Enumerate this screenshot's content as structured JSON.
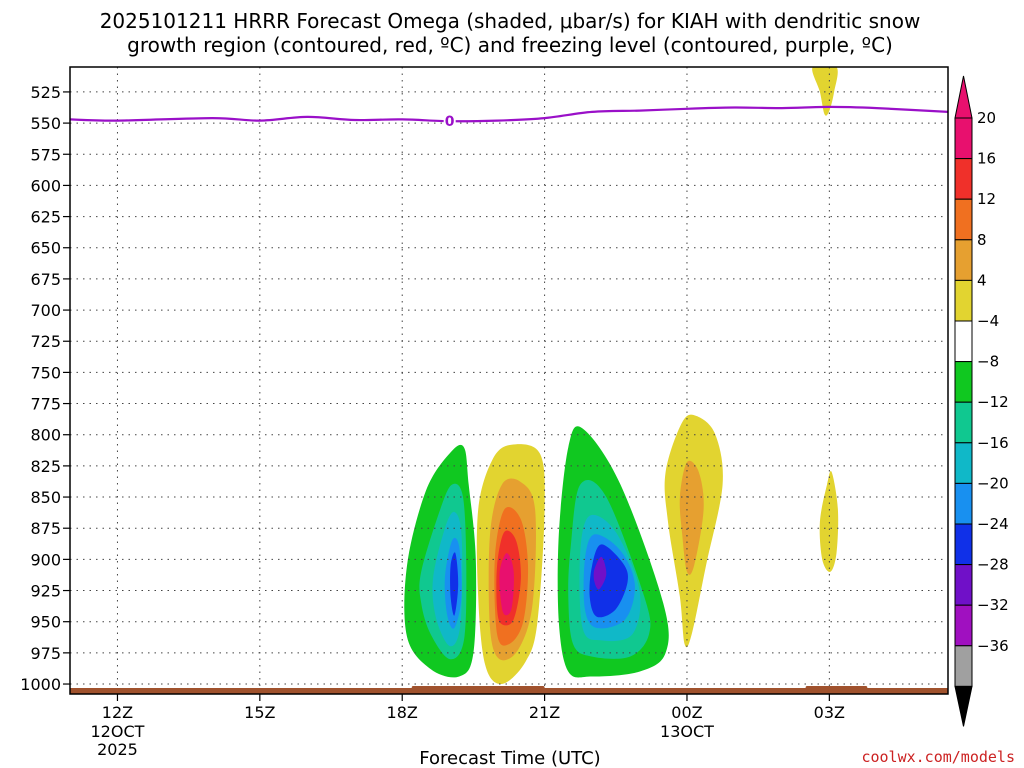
{
  "chart_data": {
    "type": "contour",
    "title_line1": "2025101211 HRRR Forecast Omega (shaded, μbar/s) for KIAH with dendritic snow",
    "title_line2": "growth region (contoured, red, ºC) and freezing level (contoured, purple, ºC)",
    "xlabel": "Forecast Time (UTC)",
    "credit": "coolwx.com/models",
    "credit_color": "#cc2222",
    "x_range_hours": [
      -1,
      17.5
    ],
    "y_range_hpa": [
      505,
      1008
    ],
    "y_ticks": [
      525,
      550,
      575,
      600,
      625,
      650,
      675,
      700,
      725,
      750,
      775,
      800,
      825,
      850,
      875,
      900,
      925,
      950,
      975,
      1000
    ],
    "x_ticks": [
      {
        "hour": 0,
        "label": "12Z",
        "date": "12OCT",
        "year": "2025"
      },
      {
        "hour": 3,
        "label": "15Z",
        "date": "",
        "year": ""
      },
      {
        "hour": 6,
        "label": "18Z",
        "date": "",
        "year": ""
      },
      {
        "hour": 9,
        "label": "21Z",
        "date": "",
        "year": ""
      },
      {
        "hour": 12,
        "label": "00Z",
        "date": "13OCT",
        "year": ""
      },
      {
        "hour": 15,
        "label": "03Z",
        "date": "",
        "year": ""
      }
    ],
    "colorbar": {
      "labels": [
        "20",
        "16",
        "12",
        "8",
        "4",
        "−4",
        "−8",
        "−12",
        "−16",
        "−20",
        "−24",
        "−28",
        "−32",
        "−36"
      ],
      "colors": [
        "#e8106e",
        "#f0302a",
        "#f07020",
        "#e6a030",
        "#e2d430",
        "#ffffff",
        "#10c820",
        "#10c890",
        "#10b8c8",
        "#1890f0",
        "#1030e8",
        "#7010c8",
        "#a010c0",
        "#a0a0a0"
      ],
      "top_triangle_color": "#e8106e",
      "bottom_triangle_color": "#000000"
    },
    "freezing_level": {
      "color": "#9a10c8",
      "label": "0",
      "label_hour": 7,
      "points": [
        [
          -1,
          547
        ],
        [
          0,
          548
        ],
        [
          2,
          546
        ],
        [
          3,
          548
        ],
        [
          4,
          545
        ],
        [
          5,
          547.5
        ],
        [
          6,
          547
        ],
        [
          7,
          548.5
        ],
        [
          8,
          548
        ],
        [
          9,
          546
        ],
        [
          10,
          541
        ],
        [
          11,
          540
        ],
        [
          12,
          538.5
        ],
        [
          13,
          537.5
        ],
        [
          14,
          538
        ],
        [
          15,
          537
        ],
        [
          16,
          538
        ],
        [
          17.5,
          541
        ]
      ]
    },
    "omega_regions": [
      {
        "color": "#e2d430",
        "points": [
          [
            14.65,
            505
          ],
          [
            15.15,
            505
          ],
          [
            15.1,
            525
          ],
          [
            15.0,
            540
          ],
          [
            14.9,
            543
          ],
          [
            14.8,
            525
          ]
        ]
      },
      {
        "color": "#10c820",
        "points": [
          [
            6.1,
            905
          ],
          [
            6.5,
            845
          ],
          [
            7.0,
            815
          ],
          [
            7.3,
            810
          ],
          [
            7.4,
            840
          ],
          [
            7.55,
            900
          ],
          [
            7.5,
            975
          ],
          [
            7.2,
            994
          ],
          [
            6.6,
            988
          ],
          [
            6.1,
            962
          ]
        ]
      },
      {
        "color": "#10c890",
        "points": [
          [
            6.4,
            910
          ],
          [
            6.8,
            860
          ],
          [
            7.05,
            840
          ],
          [
            7.28,
            850
          ],
          [
            7.35,
            905
          ],
          [
            7.3,
            965
          ],
          [
            7.0,
            980
          ],
          [
            6.6,
            960
          ],
          [
            6.4,
            935
          ]
        ]
      },
      {
        "color": "#10b8c8",
        "points": [
          [
            6.65,
            915
          ],
          [
            6.9,
            875
          ],
          [
            7.1,
            862
          ],
          [
            7.25,
            880
          ],
          [
            7.25,
            940
          ],
          [
            7.15,
            965
          ],
          [
            6.95,
            968
          ],
          [
            6.7,
            945
          ]
        ]
      },
      {
        "color": "#1890f0",
        "points": [
          [
            6.9,
            915
          ],
          [
            7.05,
            885
          ],
          [
            7.2,
            890
          ],
          [
            7.25,
            930
          ],
          [
            7.1,
            955
          ],
          [
            6.95,
            945
          ]
        ]
      },
      {
        "color": "#1030e8",
        "points": [
          [
            7.02,
            905
          ],
          [
            7.12,
            895
          ],
          [
            7.18,
            920
          ],
          [
            7.1,
            945
          ],
          [
            7.02,
            930
          ]
        ]
      },
      {
        "color": "#e2d430",
        "points": [
          [
            7.6,
            860
          ],
          [
            7.9,
            820
          ],
          [
            8.3,
            808
          ],
          [
            8.9,
            815
          ],
          [
            9.0,
            860
          ],
          [
            8.85,
            950
          ],
          [
            8.6,
            982
          ],
          [
            8.1,
            1000
          ],
          [
            7.75,
            985
          ],
          [
            7.6,
            930
          ]
        ]
      },
      {
        "color": "#e6a030",
        "points": [
          [
            7.85,
            880
          ],
          [
            8.1,
            840
          ],
          [
            8.5,
            838
          ],
          [
            8.8,
            860
          ],
          [
            8.75,
            935
          ],
          [
            8.45,
            972
          ],
          [
            8.05,
            980
          ],
          [
            7.85,
            955
          ]
        ]
      },
      {
        "color": "#f07020",
        "points": [
          [
            7.95,
            900
          ],
          [
            8.15,
            860
          ],
          [
            8.5,
            868
          ],
          [
            8.65,
            905
          ],
          [
            8.55,
            950
          ],
          [
            8.25,
            968
          ],
          [
            8.0,
            960
          ]
        ]
      },
      {
        "color": "#f0302a",
        "points": [
          [
            8.0,
            905
          ],
          [
            8.15,
            878
          ],
          [
            8.4,
            885
          ],
          [
            8.5,
            915
          ],
          [
            8.35,
            948
          ],
          [
            8.1,
            952
          ],
          [
            8.0,
            940
          ]
        ]
      },
      {
        "color": "#e8106e",
        "points": [
          [
            8.05,
            912
          ],
          [
            8.2,
            895
          ],
          [
            8.35,
            910
          ],
          [
            8.3,
            940
          ],
          [
            8.12,
            942
          ]
        ]
      },
      {
        "color": "#10c820",
        "points": [
          [
            9.3,
            880
          ],
          [
            9.5,
            810
          ],
          [
            9.8,
            795
          ],
          [
            10.6,
            840
          ],
          [
            11.5,
            935
          ],
          [
            11.55,
            975
          ],
          [
            11.0,
            990
          ],
          [
            10.0,
            994
          ],
          [
            9.5,
            990
          ],
          [
            9.3,
            950
          ]
        ]
      },
      {
        "color": "#10c890",
        "points": [
          [
            9.55,
            890
          ],
          [
            9.75,
            840
          ],
          [
            10.3,
            850
          ],
          [
            11.1,
            930
          ],
          [
            11.2,
            960
          ],
          [
            10.8,
            978
          ],
          [
            10.0,
            978
          ],
          [
            9.6,
            968
          ],
          [
            9.5,
            930
          ]
        ]
      },
      {
        "color": "#10b8c8",
        "points": [
          [
            9.75,
            895
          ],
          [
            9.95,
            865
          ],
          [
            10.5,
            878
          ],
          [
            11.0,
            925
          ],
          [
            10.85,
            960
          ],
          [
            10.2,
            965
          ],
          [
            9.8,
            955
          ]
        ]
      },
      {
        "color": "#1890f0",
        "points": [
          [
            9.85,
            900
          ],
          [
            10.05,
            880
          ],
          [
            10.6,
            893
          ],
          [
            10.9,
            920
          ],
          [
            10.7,
            948
          ],
          [
            10.1,
            955
          ],
          [
            9.85,
            940
          ]
        ]
      },
      {
        "color": "#1030e8",
        "points": [
          [
            10.0,
            905
          ],
          [
            10.2,
            888
          ],
          [
            10.65,
            903
          ],
          [
            10.75,
            918
          ],
          [
            10.5,
            940
          ],
          [
            10.1,
            946
          ],
          [
            9.95,
            930
          ]
        ]
      },
      {
        "color": "#7010c8",
        "points": [
          [
            10.05,
            908
          ],
          [
            10.2,
            898
          ],
          [
            10.3,
            912
          ],
          [
            10.15,
            924
          ],
          [
            10.05,
            918
          ]
        ]
      },
      {
        "color": "#e2d430",
        "points": [
          [
            11.55,
            830
          ],
          [
            11.9,
            790
          ],
          [
            12.2,
            785
          ],
          [
            12.6,
            800
          ],
          [
            12.75,
            840
          ],
          [
            12.4,
            905
          ],
          [
            12.1,
            960
          ],
          [
            11.95,
            968
          ],
          [
            11.85,
            930
          ],
          [
            11.6,
            870
          ]
        ]
      },
      {
        "color": "#e6a030",
        "points": [
          [
            11.85,
            850
          ],
          [
            12.0,
            822
          ],
          [
            12.25,
            830
          ],
          [
            12.35,
            860
          ],
          [
            12.15,
            905
          ],
          [
            12.0,
            910
          ],
          [
            11.9,
            880
          ]
        ]
      },
      {
        "color": "#e2d430",
        "points": [
          [
            14.8,
            870
          ],
          [
            14.95,
            840
          ],
          [
            15.05,
            830
          ],
          [
            15.18,
            860
          ],
          [
            15.15,
            895
          ],
          [
            15.02,
            910
          ],
          [
            14.85,
            900
          ]
        ]
      }
    ],
    "surface_color": "#a0522d",
    "surface_bumps_hours": [
      [
        6.2,
        9.0
      ],
      [
        14.5,
        15.8
      ]
    ]
  }
}
